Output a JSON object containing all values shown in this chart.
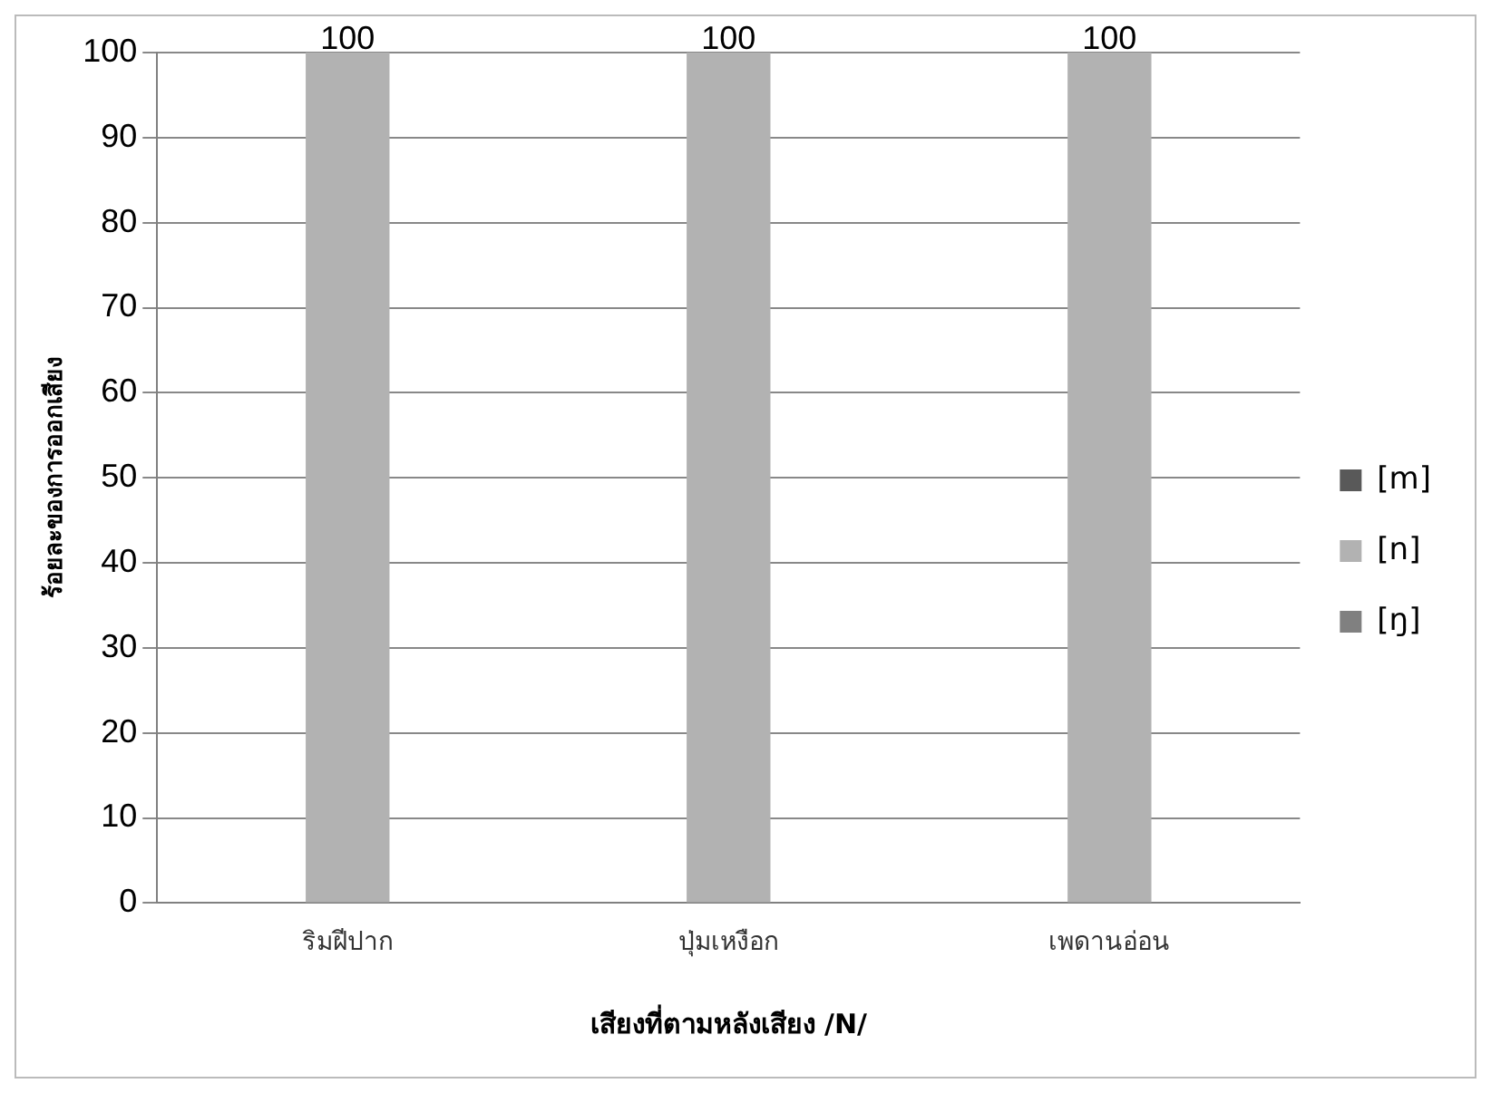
{
  "chart_data": {
    "type": "bar",
    "xlabel": "เสียงที่ตามหลังเสียง /N/",
    "ylabel": "ร้อยละของการออกเสียง",
    "categories": [
      "ริมฝีปาก",
      "ปุ่มเหงือก",
      "เพดานอ่อน"
    ],
    "series": [
      {
        "name": "[m]",
        "color": "#595959",
        "values": [
          0,
          0,
          0
        ]
      },
      {
        "name": "[n]",
        "color": "#b2b2b2",
        "values": [
          100,
          100,
          100
        ],
        "value_labels": [
          "100",
          "100",
          "100"
        ]
      },
      {
        "name": "[ŋ]",
        "color": "#808080",
        "values": [
          0,
          0,
          0
        ]
      }
    ],
    "ylim": [
      0,
      100
    ],
    "yticks": [
      0,
      10,
      20,
      30,
      40,
      50,
      60,
      70,
      80,
      90,
      100
    ],
    "grid": "y",
    "legend": "right"
  }
}
